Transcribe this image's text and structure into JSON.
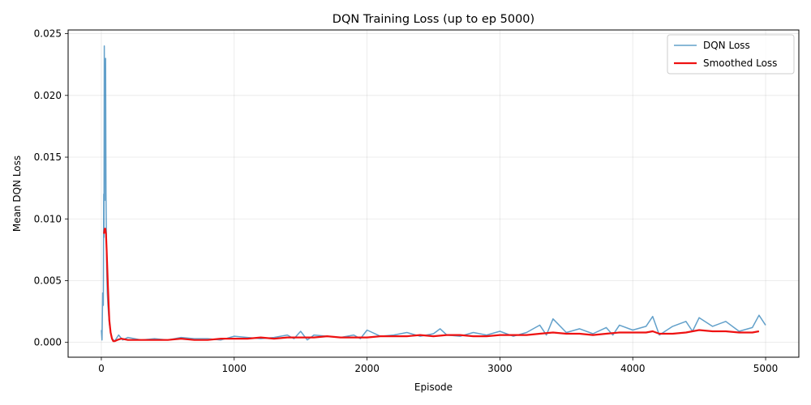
{
  "chart_data": {
    "type": "line",
    "title": "DQN Training Loss (up to ep 5000)",
    "xlabel": "Episode",
    "ylabel": "Mean DQN Loss",
    "xlim": [
      -250,
      5250
    ],
    "ylim": [
      -0.0012,
      0.0253
    ],
    "xticks": [
      0,
      1000,
      2000,
      3000,
      4000,
      5000
    ],
    "xtick_labels": [
      "0",
      "1000",
      "2000",
      "3000",
      "4000",
      "5000"
    ],
    "yticks": [
      0.0,
      0.005,
      0.01,
      0.015,
      0.02,
      0.025
    ],
    "ytick_labels": [
      "0.000",
      "0.005",
      "0.010",
      "0.015",
      "0.020",
      "0.025"
    ],
    "grid": true,
    "legend_position": "top-right",
    "series": [
      {
        "name": "DQN Loss",
        "color": "#1f77b4",
        "alpha": 0.7,
        "x": [
          0,
          5,
          10,
          15,
          18,
          20,
          22,
          25,
          28,
          30,
          32,
          35,
          38,
          40,
          45,
          50,
          60,
          70,
          80,
          100,
          130,
          160,
          200,
          250,
          300,
          400,
          500,
          600,
          700,
          800,
          900,
          1000,
          1100,
          1200,
          1300,
          1400,
          1450,
          1500,
          1550,
          1600,
          1700,
          1800,
          1900,
          1950,
          2000,
          2100,
          2200,
          2300,
          2400,
          2500,
          2550,
          2600,
          2700,
          2800,
          2900,
          3000,
          3100,
          3200,
          3300,
          3350,
          3400,
          3500,
          3600,
          3700,
          3800,
          3850,
          3900,
          4000,
          4100,
          4150,
          4200,
          4300,
          4400,
          4450,
          4500,
          4600,
          4700,
          4800,
          4900,
          4950,
          5000
        ],
        "values": [
          0.001,
          0.0002,
          0.004,
          0.003,
          0.012,
          0.0085,
          0.024,
          0.015,
          0.021,
          0.0115,
          0.023,
          0.012,
          0.0085,
          0.006,
          0.004,
          0.003,
          0.0015,
          0.0008,
          0.0003,
          0.0001,
          0.0006,
          0.0002,
          0.0004,
          0.0003,
          0.0002,
          0.0003,
          0.0002,
          0.0004,
          0.0003,
          0.0003,
          0.0002,
          0.0005,
          0.0004,
          0.0003,
          0.0004,
          0.0006,
          0.0003,
          0.0009,
          0.0002,
          0.0006,
          0.0005,
          0.0004,
          0.0006,
          0.0003,
          0.001,
          0.0005,
          0.0006,
          0.0008,
          0.0005,
          0.0007,
          0.0011,
          0.0006,
          0.0005,
          0.0008,
          0.0006,
          0.0009,
          0.0005,
          0.0008,
          0.0014,
          0.0006,
          0.0019,
          0.0008,
          0.0011,
          0.0007,
          0.0012,
          0.0006,
          0.0014,
          0.001,
          0.0013,
          0.0021,
          0.0006,
          0.0013,
          0.0017,
          0.0009,
          0.002,
          0.0013,
          0.0017,
          0.0009,
          0.0012,
          0.0022,
          0.0014
        ]
      },
      {
        "name": "Smoothed Loss",
        "color": "#ee1111",
        "x": [
          20,
          25,
          30,
          35,
          40,
          45,
          50,
          55,
          60,
          70,
          80,
          90,
          100,
          120,
          150,
          200,
          300,
          400,
          500,
          600,
          700,
          800,
          900,
          1000,
          1100,
          1200,
          1300,
          1400,
          1500,
          1600,
          1700,
          1800,
          1900,
          2000,
          2100,
          2200,
          2300,
          2400,
          2500,
          2600,
          2700,
          2800,
          2900,
          3000,
          3100,
          3200,
          3300,
          3400,
          3500,
          3600,
          3700,
          3800,
          3900,
          4000,
          4100,
          4150,
          4200,
          4300,
          4400,
          4500,
          4600,
          4700,
          4800,
          4900,
          4950
        ],
        "values": [
          0.0088,
          0.0092,
          0.0092,
          0.0088,
          0.0075,
          0.006,
          0.0045,
          0.003,
          0.0018,
          0.0008,
          0.0003,
          0.0001,
          0.0001,
          0.0002,
          0.0003,
          0.0002,
          0.0002,
          0.0002,
          0.0002,
          0.0003,
          0.0002,
          0.0002,
          0.0003,
          0.0003,
          0.0003,
          0.0004,
          0.0003,
          0.0004,
          0.0004,
          0.0004,
          0.0005,
          0.0004,
          0.0004,
          0.0004,
          0.0005,
          0.0005,
          0.0005,
          0.0006,
          0.0005,
          0.0006,
          0.0006,
          0.0005,
          0.0005,
          0.0006,
          0.0006,
          0.0006,
          0.0007,
          0.0008,
          0.0007,
          0.0007,
          0.0006,
          0.0007,
          0.0008,
          0.0008,
          0.0008,
          0.0009,
          0.0007,
          0.0007,
          0.0008,
          0.001,
          0.0009,
          0.0009,
          0.0008,
          0.0008,
          0.0009
        ]
      }
    ]
  }
}
